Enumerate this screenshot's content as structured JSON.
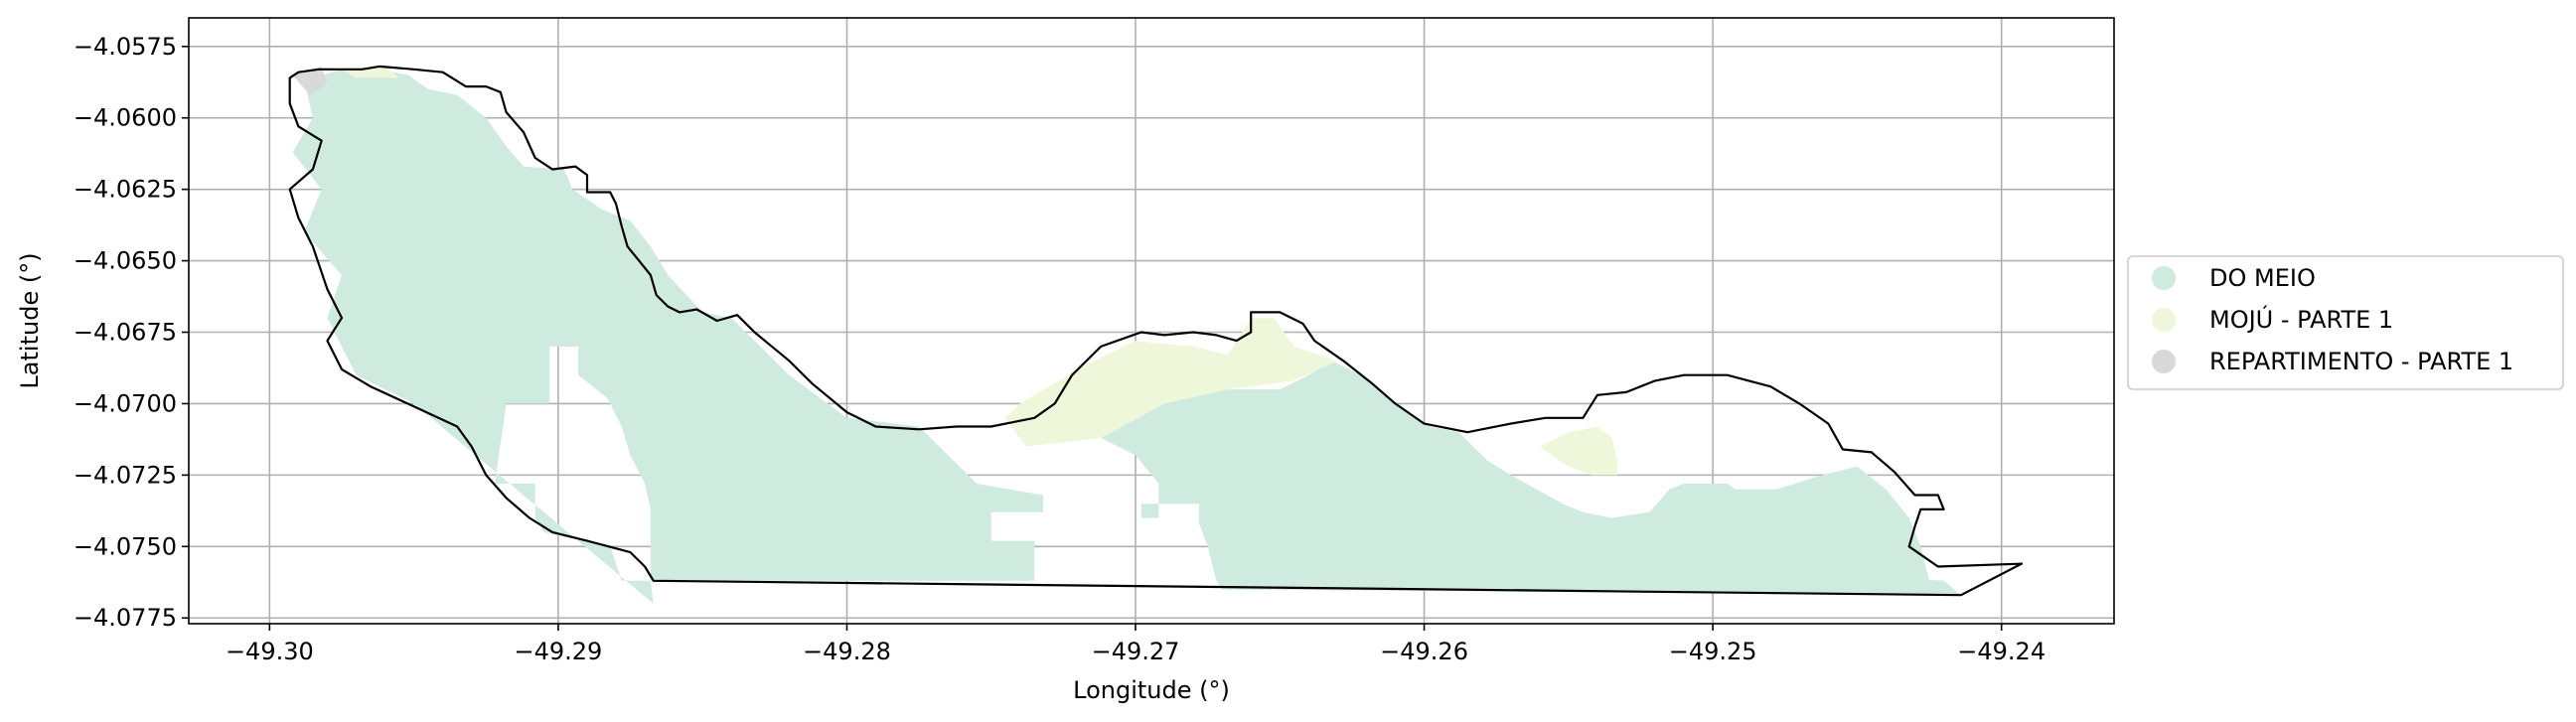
{
  "chart_data": {
    "type": "map",
    "xlabel": "Longitude (°)",
    "ylabel": "Latitude (°)",
    "xlim": [
      -49.3028,
      -49.2361
    ],
    "ylim": [
      -4.0777,
      -4.0565
    ],
    "grid": true,
    "x_ticks": [
      -49.3,
      -49.29,
      -49.28,
      -49.27,
      -49.26,
      -49.25,
      -49.24
    ],
    "x_tick_labels": [
      "−49.30",
      "−49.29",
      "−49.28",
      "−49.27",
      "−49.26",
      "−49.25",
      "−49.24"
    ],
    "y_ticks": [
      -4.0575,
      -4.06,
      -4.0625,
      -4.065,
      -4.0675,
      -4.07,
      -4.0725,
      -4.075,
      -4.0775
    ],
    "y_tick_labels": [
      "−4.0575",
      "−4.0600",
      "−4.0625",
      "−4.0650",
      "−4.0675",
      "−4.0700",
      "−4.0725",
      "−4.0750",
      "−4.0775"
    ],
    "legend_position": "right",
    "legend": [
      {
        "label": "DO MEIO",
        "color": "#cfeade"
      },
      {
        "label": "MOJÚ - PARTE 1",
        "color": "#eff7da"
      },
      {
        "label": "REPARTIMENTO - PARTE 1",
        "color": "#d9d9d9"
      }
    ],
    "regions": [
      {
        "name": "DO MEIO",
        "color": "#cfeade",
        "polygons": [
          [
            [
              -49.2988,
              -4.0587
            ],
            [
              -49.2975,
              -4.0583
            ],
            [
              -49.2962,
              -4.0583
            ],
            [
              -49.2952,
              -4.0585
            ],
            [
              -49.2945,
              -4.059
            ],
            [
              -49.2935,
              -4.0592
            ],
            [
              -49.2925,
              -4.06
            ],
            [
              -49.2918,
              -4.061
            ],
            [
              -49.2912,
              -4.0617
            ],
            [
              -49.2898,
              -4.0618
            ],
            [
              -49.2895,
              -4.0625
            ],
            [
              -49.2885,
              -4.0632
            ],
            [
              -49.2875,
              -4.0636
            ],
            [
              -49.2868,
              -4.0645
            ],
            [
              -49.2862,
              -4.0655
            ],
            [
              -49.285,
              -4.0668
            ],
            [
              -49.284,
              -4.067
            ],
            [
              -49.283,
              -4.068
            ],
            [
              -49.282,
              -4.069
            ],
            [
              -49.28,
              -4.0705
            ],
            [
              -49.2775,
              -4.0708
            ],
            [
              -49.2755,
              -4.0728
            ],
            [
              -49.2732,
              -4.0732
            ],
            [
              -49.2732,
              -4.0738
            ],
            [
              -49.275,
              -4.0738
            ],
            [
              -49.275,
              -4.0748
            ],
            [
              -49.2735,
              -4.0748
            ],
            [
              -49.2735,
              -4.0762
            ],
            [
              -49.2868,
              -4.0762
            ],
            [
              -49.2868,
              -4.0737
            ],
            [
              -49.287,
              -4.0728
            ],
            [
              -49.2875,
              -4.0718
            ],
            [
              -49.2878,
              -4.0708
            ],
            [
              -49.2883,
              -4.0698
            ],
            [
              -49.2893,
              -4.069
            ],
            [
              -49.2893,
              -4.068
            ],
            [
              -49.2903,
              -4.068
            ],
            [
              -49.2903,
              -4.07
            ],
            [
              -49.2918,
              -4.07
            ],
            [
              -49.2922,
              -4.0728
            ],
            [
              -49.2908,
              -4.0728
            ],
            [
              -49.2908,
              -4.074
            ],
            [
              -49.2905,
              -4.0745
            ],
            [
              -49.2882,
              -4.075
            ],
            [
              -49.2878,
              -4.0762
            ],
            [
              -49.2868,
              -4.0762
            ],
            [
              -49.2867,
              -4.077
            ],
            [
              -49.295,
              -4.07
            ],
            [
              -49.297,
              -4.069
            ],
            [
              -49.298,
              -4.067
            ],
            [
              -49.2975,
              -4.0655
            ],
            [
              -49.2988,
              -4.064
            ],
            [
              -49.2982,
              -4.0625
            ],
            [
              -49.2992,
              -4.0612
            ],
            [
              -49.2985,
              -4.06
            ],
            [
              -49.2988,
              -4.0587
            ]
          ],
          [
            [
              -49.2712,
              -4.0712
            ],
            [
              -49.27,
              -4.0718
            ],
            [
              -49.2692,
              -4.0728
            ],
            [
              -49.2692,
              -4.074
            ],
            [
              -49.2698,
              -4.074
            ],
            [
              -49.2698,
              -4.0735
            ],
            [
              -49.2678,
              -4.0735
            ],
            [
              -49.2678,
              -4.0742
            ],
            [
              -49.2675,
              -4.075
            ],
            [
              -49.2672,
              -4.0762
            ],
            [
              -49.267,
              -4.0765
            ],
            [
              -49.2414,
              -4.0767
            ],
            [
              -49.242,
              -4.0762
            ],
            [
              -49.246,
              -4.076
            ],
            [
              -49.247,
              -4.0758
            ],
            [
              -49.2478,
              -4.075
            ],
            [
              -49.248,
              -4.0742
            ],
            [
              -49.2485,
              -4.0735
            ],
            [
              -49.2495,
              -4.0728
            ],
            [
              -49.251,
              -4.0728
            ],
            [
              -49.2515,
              -4.073
            ],
            [
              -49.2522,
              -4.0738
            ],
            [
              -49.2535,
              -4.074
            ],
            [
              -49.2545,
              -4.0738
            ],
            [
              -49.2552,
              -4.0735
            ],
            [
              -49.257,
              -4.0725
            ],
            [
              -49.2578,
              -4.072
            ],
            [
              -49.2588,
              -4.071
            ],
            [
              -49.2598,
              -4.0708
            ],
            [
              -49.261,
              -4.07
            ],
            [
              -49.2622,
              -4.069
            ],
            [
              -49.2632,
              -4.0685
            ],
            [
              -49.264,
              -4.069
            ],
            [
              -49.265,
              -4.0695
            ],
            [
              -49.2668,
              -4.0695
            ],
            [
              -49.269,
              -4.07
            ],
            [
              -49.2712,
              -4.0712
            ]
          ],
          [
            [
              -49.25,
              -4.073
            ],
            [
              -49.2478,
              -4.073
            ],
            [
              -49.2462,
              -4.0725
            ],
            [
              -49.245,
              -4.0722
            ],
            [
              -49.244,
              -4.073
            ],
            [
              -49.2432,
              -4.074
            ],
            [
              -49.2428,
              -4.075
            ],
            [
              -49.2425,
              -4.0762
            ],
            [
              -49.25,
              -4.0762
            ],
            [
              -49.25,
              -4.073
            ]
          ]
        ]
      },
      {
        "name": "MOJÚ - PARTE 1",
        "color": "#eff7da",
        "polygons": [
          [
            [
              -49.274,
              -4.07
            ],
            [
              -49.272,
              -4.0688
            ],
            [
              -49.27,
              -4.0678
            ],
            [
              -49.268,
              -4.068
            ],
            [
              -49.2668,
              -4.0683
            ],
            [
              -49.266,
              -4.067
            ],
            [
              -49.2652,
              -4.067
            ],
            [
              -49.2645,
              -4.068
            ],
            [
              -49.263,
              -4.0685
            ],
            [
              -49.2645,
              -4.0692
            ],
            [
              -49.2668,
              -4.0695
            ],
            [
              -49.269,
              -4.07
            ],
            [
              -49.2712,
              -4.0712
            ],
            [
              -49.2738,
              -4.0715
            ],
            [
              -49.2745,
              -4.0705
            ],
            [
              -49.274,
              -4.07
            ]
          ],
          [
            [
              -49.255,
              -4.071
            ],
            [
              -49.254,
              -4.0708
            ],
            [
              -49.2535,
              -4.0712
            ],
            [
              -49.2533,
              -4.072
            ],
            [
              -49.2533,
              -4.0725
            ],
            [
              -49.2542,
              -4.0725
            ],
            [
              -49.255,
              -4.0722
            ],
            [
              -49.256,
              -4.0715
            ],
            [
              -49.255,
              -4.071
            ]
          ],
          [
            [
              -49.296,
              -4.0582
            ],
            [
              -49.2975,
              -4.0583
            ],
            [
              -49.297,
              -4.0586
            ],
            [
              -49.2955,
              -4.0586
            ],
            [
              -49.296,
              -4.0582
            ]
          ]
        ]
      },
      {
        "name": "REPARTIMENTO - PARTE 1",
        "color": "#d9d9d9",
        "polygons": [
          [
            [
              -49.2992,
              -4.0585
            ],
            [
              -49.2982,
              -4.0582
            ],
            [
              -49.298,
              -4.0588
            ],
            [
              -49.2986,
              -4.0592
            ],
            [
              -49.2992,
              -4.0585
            ]
          ]
        ]
      }
    ],
    "boundary": [
      [
        -49.2993,
        -4.0586
      ],
      [
        -49.299,
        -4.0584
      ],
      [
        -49.2983,
        -4.0583
      ],
      [
        -49.2975,
        -4.0583
      ],
      [
        -49.2968,
        -4.0583
      ],
      [
        -49.2962,
        -4.0582
      ],
      [
        -49.295,
        -4.0583
      ],
      [
        -49.294,
        -4.0584
      ],
      [
        -49.2932,
        -4.0589
      ],
      [
        -49.2925,
        -4.0589
      ],
      [
        -49.292,
        -4.0591
      ],
      [
        -49.2918,
        -4.0598
      ],
      [
        -49.2912,
        -4.0605
      ],
      [
        -49.2908,
        -4.0614
      ],
      [
        -49.2902,
        -4.0618
      ],
      [
        -49.2894,
        -4.0617
      ],
      [
        -49.289,
        -4.062
      ],
      [
        -49.289,
        -4.0626
      ],
      [
        -49.2882,
        -4.0626
      ],
      [
        -49.288,
        -4.063
      ],
      [
        -49.2878,
        -4.0638
      ],
      [
        -49.2876,
        -4.0645
      ],
      [
        -49.2872,
        -4.065
      ],
      [
        -49.2868,
        -4.0655
      ],
      [
        -49.2866,
        -4.0662
      ],
      [
        -49.2862,
        -4.0666
      ],
      [
        -49.2858,
        -4.0668
      ],
      [
        -49.2852,
        -4.0667
      ],
      [
        -49.2845,
        -4.0671
      ],
      [
        -49.2838,
        -4.0669
      ],
      [
        -49.2832,
        -4.0675
      ],
      [
        -49.282,
        -4.0685
      ],
      [
        -49.2812,
        -4.0693
      ],
      [
        -49.28,
        -4.0703
      ],
      [
        -49.279,
        -4.0708
      ],
      [
        -49.2775,
        -4.0709
      ],
      [
        -49.2762,
        -4.0708
      ],
      [
        -49.275,
        -4.0708
      ],
      [
        -49.274,
        -4.0706
      ],
      [
        -49.2735,
        -4.0705
      ],
      [
        -49.2728,
        -4.07
      ],
      [
        -49.2722,
        -4.069
      ],
      [
        -49.2712,
        -4.068
      ],
      [
        -49.2698,
        -4.0675
      ],
      [
        -49.269,
        -4.0676
      ],
      [
        -49.268,
        -4.0675
      ],
      [
        -49.2672,
        -4.0676
      ],
      [
        -49.2665,
        -4.0678
      ],
      [
        -49.266,
        -4.0675
      ],
      [
        -49.266,
        -4.0668
      ],
      [
        -49.265,
        -4.0668
      ],
      [
        -49.2642,
        -4.0672
      ],
      [
        -49.2638,
        -4.0678
      ],
      [
        -49.2628,
        -4.0685
      ],
      [
        -49.2618,
        -4.0693
      ],
      [
        -49.261,
        -4.07
      ],
      [
        -49.26,
        -4.0707
      ],
      [
        -49.2585,
        -4.071
      ],
      [
        -49.257,
        -4.0707
      ],
      [
        -49.2558,
        -4.0705
      ],
      [
        -49.2545,
        -4.0705
      ],
      [
        -49.254,
        -4.0697
      ],
      [
        -49.253,
        -4.0696
      ],
      [
        -49.252,
        -4.0692
      ],
      [
        -49.251,
        -4.069
      ],
      [
        -49.2495,
        -4.069
      ],
      [
        -49.248,
        -4.0694
      ],
      [
        -49.247,
        -4.07
      ],
      [
        -49.246,
        -4.0707
      ],
      [
        -49.2455,
        -4.0716
      ],
      [
        -49.2445,
        -4.0717
      ],
      [
        -49.2437,
        -4.0724
      ],
      [
        -49.243,
        -4.0732
      ],
      [
        -49.2422,
        -4.0732
      ],
      [
        -49.242,
        -4.0737
      ],
      [
        -49.2428,
        -4.0737
      ],
      [
        -49.243,
        -4.0743
      ],
      [
        -49.2432,
        -4.075
      ],
      [
        -49.2422,
        -4.0757
      ],
      [
        -49.2393,
        -4.0756
      ],
      [
        -49.2414,
        -4.0767
      ],
      [
        -49.2867,
        -4.0762
      ],
      [
        -49.287,
        -4.0757
      ],
      [
        -49.2875,
        -4.0752
      ],
      [
        -49.289,
        -4.0748
      ],
      [
        -49.2902,
        -4.0745
      ],
      [
        -49.291,
        -4.074
      ],
      [
        -49.2918,
        -4.0733
      ],
      [
        -49.2925,
        -4.0725
      ],
      [
        -49.293,
        -4.0715
      ],
      [
        -49.2935,
        -4.0708
      ],
      [
        -49.295,
        -4.0701
      ],
      [
        -49.2965,
        -4.0694
      ],
      [
        -49.2975,
        -4.0688
      ],
      [
        -49.298,
        -4.0678
      ],
      [
        -49.2975,
        -4.067
      ],
      [
        -49.298,
        -4.066
      ],
      [
        -49.2985,
        -4.0645
      ],
      [
        -49.299,
        -4.0635
      ],
      [
        -49.2993,
        -4.0625
      ],
      [
        -49.2985,
        -4.0618
      ],
      [
        -49.2982,
        -4.0608
      ],
      [
        -49.299,
        -4.0603
      ],
      [
        -49.2993,
        -4.0595
      ],
      [
        -49.2993,
        -4.0586
      ]
    ]
  }
}
